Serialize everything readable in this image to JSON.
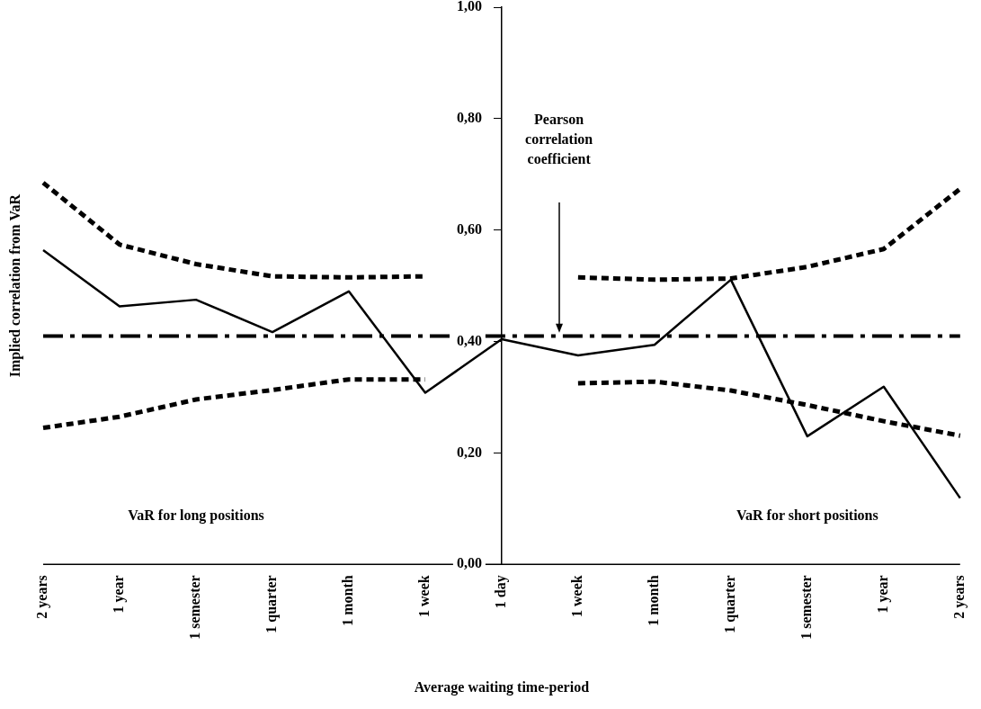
{
  "chart_data": {
    "type": "line",
    "xlabel": "Average waiting time-period",
    "ylabel": "Implied correlation from VaR",
    "categories": [
      "2 years",
      "1 year",
      "1 semester",
      "1 quarter",
      "1 month",
      "1 week",
      "1 day",
      "1 week",
      "1 month",
      "1 quarter",
      "1 semester",
      "1 year",
      "2 years"
    ],
    "series": [
      {
        "color": "#000000",
        "line_style": "solid",
        "values": [
          0.564,
          0.463,
          0.475,
          0.417,
          0.49,
          0.308,
          0.404,
          0.375,
          0.394,
          0.511,
          0.23,
          0.319,
          0.119
        ]
      },
      {
        "color": "#000000",
        "line_style": "dashed",
        "values": [
          0.685,
          0.574,
          0.539,
          0.517,
          0.515,
          0.517,
          null,
          0.515,
          0.511,
          0.513,
          0.534,
          0.566,
          0.674
        ]
      },
      {
        "color": "#000000",
        "line_style": "dashed",
        "values": [
          0.245,
          0.265,
          0.296,
          0.313,
          0.332,
          0.332,
          null,
          0.325,
          0.328,
          0.312,
          0.286,
          0.257,
          0.231
        ]
      }
    ],
    "ref_lines": [
      {
        "axis": "y",
        "value": 0.41,
        "color": "#000000",
        "line_style": "dashed"
      }
    ],
    "annotations": [
      "Pearson correlation coefficient",
      "VaR for long positions",
      "VaR for short positions"
    ],
    "ylim": [
      0,
      1
    ],
    "yticks": [
      {
        "value": 0,
        "label": "0,00"
      },
      {
        "value": 0.2,
        "label": "0,20"
      },
      {
        "value": 0.4,
        "label": "0,40"
      },
      {
        "value": 0.6,
        "label": "0,60"
      },
      {
        "value": 0.8,
        "label": "0,80"
      },
      {
        "value": 1,
        "label": "1,00"
      }
    ],
    "grid": false,
    "legend": false,
    "marker": "none"
  }
}
